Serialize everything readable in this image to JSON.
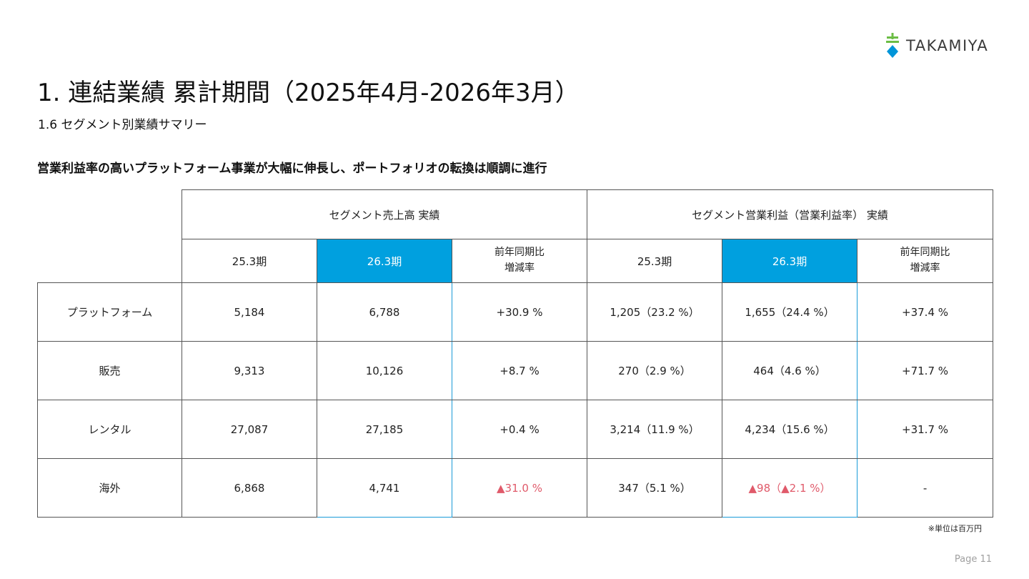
{
  "logo": {
    "text": "TAKAMIYA",
    "icon": "takamiya-logo-icon",
    "colors": {
      "green": "#6cbd45",
      "blue": "#0095d9"
    }
  },
  "title": "1. 連結業績 累計期間（2025年4月-2026年3月）",
  "subtitle": "1.6 セグメント別業績サマリー",
  "lead": "営業利益率の高いプラットフォーム事業が大幅に伸長し、ポートフォリオの転換は順調に進行",
  "table": {
    "group_headers": [
      "セグメント売上高 実績",
      "セグメント営業利益（営業利益率） 実績"
    ],
    "sub_headers": [
      "25.3期",
      "26.3期",
      "前年同期比\n増減率",
      "25.3期",
      "26.3期",
      "前年同期比\n増減率"
    ],
    "rows": [
      {
        "segment": "プラットフォーム",
        "sales_prev": "5,184",
        "sales_curr": "6,788",
        "sales_yoy": "+30.9 %",
        "op_prev": "1,205（23.2 %）",
        "op_curr": "1,655（24.4 %）",
        "op_yoy": "+37.4 %"
      },
      {
        "segment": "販売",
        "sales_prev": "9,313",
        "sales_curr": "10,126",
        "sales_yoy": "+8.7 %",
        "op_prev": "270（2.9 %）",
        "op_curr": "464（4.6 %）",
        "op_yoy": "+71.7 %"
      },
      {
        "segment": "レンタル",
        "sales_prev": "27,087",
        "sales_curr": "27,185",
        "sales_yoy": "+0.4 %",
        "op_prev": "3,214（11.9 %）",
        "op_curr": "4,234（15.6 %）",
        "op_yoy": "+31.7 %"
      },
      {
        "segment": "海外",
        "sales_prev": "6,868",
        "sales_curr": "4,741",
        "sales_yoy": "▲31.0 %",
        "op_prev": "347（5.1 %）",
        "op_curr": "▲98（▲2.1 %）",
        "op_yoy": "-"
      }
    ],
    "colors": {
      "highlight": "#00a0df",
      "negative": "#e05a6a",
      "border": "#555555"
    }
  },
  "note": "※単位は百万円",
  "page": "Page 11"
}
